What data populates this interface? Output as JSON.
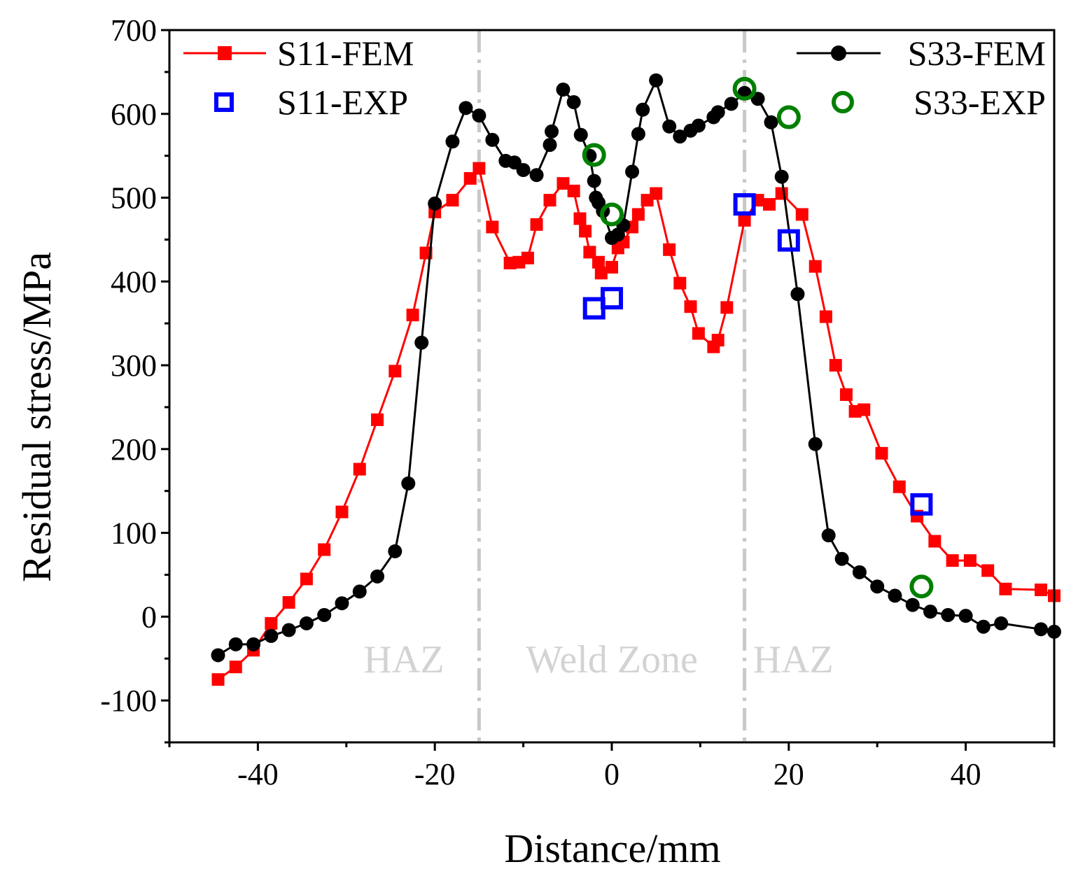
{
  "chart_data": {
    "type": "line",
    "title": "",
    "xlabel": "Distance/mm",
    "ylabel": "Residual stress/MPa",
    "xlim": [
      -50,
      50
    ],
    "ylim": [
      -150,
      700
    ],
    "xticks": [
      -40,
      -20,
      0,
      20,
      40
    ],
    "xtick_labels": [
      "-40",
      "-20",
      "0",
      "20",
      "40"
    ],
    "yticks": [
      -100,
      0,
      100,
      200,
      300,
      400,
      500,
      600,
      700
    ],
    "ytick_labels": [
      "-100",
      "0",
      "100",
      "200",
      "300",
      "400",
      "500",
      "600",
      "700"
    ],
    "zone_boundaries": [
      -15,
      15
    ],
    "zone_labels": [
      {
        "text": "HAZ",
        "x": -23.5,
        "y": -50
      },
      {
        "text": "Weld Zone",
        "x": 0,
        "y": -50
      },
      {
        "text": "HAZ",
        "x": 20.5,
        "y": -50
      }
    ],
    "series": [
      {
        "name": "S11-FEM",
        "color": "#ff0000",
        "marker": "square",
        "style": "line",
        "x": [
          -44.5,
          -42.5,
          -40.5,
          -38.5,
          -36.5,
          -34.5,
          -32.5,
          -30.5,
          -28.5,
          -26.5,
          -24.5,
          -22.5,
          -21,
          -20,
          -18,
          -16,
          -15,
          -13.5,
          -11.5,
          -10.5,
          -9.5,
          -8.5,
          -7,
          -5.5,
          -4.3,
          -3.6,
          -3,
          -2.5,
          -1.5,
          -1.2,
          0,
          0.7,
          1.3,
          2.3,
          3,
          4,
          5,
          6.5,
          7.7,
          8.9,
          9.8,
          11.5,
          12,
          13,
          15,
          16.5,
          17.8,
          19.2,
          21.5,
          23,
          24.2,
          25.3,
          26.5,
          27.5,
          28.5,
          30.5,
          32.5,
          34.5,
          36.5,
          38.5,
          40.5,
          42.5,
          44.5,
          48.5,
          50
        ],
        "y": [
          -75,
          -60,
          -40,
          -8,
          17,
          45,
          80,
          125,
          176,
          235,
          293,
          360,
          434,
          483,
          497,
          523,
          535,
          465,
          422,
          423,
          428,
          468,
          497,
          517,
          508,
          475,
          460,
          435,
          423,
          410,
          417,
          440,
          447,
          465,
          480,
          497,
          505,
          438,
          398,
          370,
          338,
          322,
          330,
          369,
          473,
          497,
          492,
          505,
          480,
          418,
          358,
          300,
          265,
          245,
          247,
          195,
          155,
          120,
          90,
          67,
          67,
          55,
          33,
          32,
          25
        ]
      },
      {
        "name": "S33-FEM",
        "color": "#000000",
        "marker": "circle",
        "style": "line",
        "x": [
          -44.5,
          -42.5,
          -40.5,
          -38.5,
          -36.5,
          -34.5,
          -32.5,
          -30.5,
          -28.5,
          -26.5,
          -24.5,
          -23,
          -21.5,
          -20,
          -18,
          -16.5,
          -15,
          -13.5,
          -12,
          -11,
          -10,
          -8.5,
          -7,
          -6.8,
          -5.5,
          -4.3,
          -3.5,
          -2.5,
          -2,
          -1.8,
          -1.5,
          -1,
          0,
          0.7,
          1.3,
          2.3,
          3,
          3.5,
          5,
          6.5,
          7.7,
          8.9,
          9.8,
          11.5,
          12,
          13.5,
          15,
          16.5,
          18,
          19.2,
          21,
          23,
          24.5,
          26,
          28,
          30,
          32,
          34,
          36,
          38,
          40,
          42,
          44,
          48.5,
          50
        ],
        "y": [
          -46,
          -33,
          -33,
          -23,
          -16,
          -8,
          2,
          16,
          30,
          48,
          78,
          159,
          327,
          493,
          567,
          607,
          598,
          569,
          544,
          542,
          533,
          527,
          563,
          579,
          629,
          614,
          575,
          550,
          520,
          500,
          494,
          484,
          452,
          456,
          467,
          531,
          576,
          605,
          640,
          585,
          573,
          580,
          586,
          596,
          602,
          612,
          625,
          618,
          590,
          525,
          385,
          206,
          97,
          69,
          53,
          36,
          25,
          14,
          6,
          2,
          1,
          -12,
          -8,
          -15,
          -18
        ]
      },
      {
        "name": "S11-EXP",
        "color": "#0000ff",
        "marker": "open-square",
        "style": "scatter",
        "x": [
          -2,
          0,
          15,
          20,
          35
        ],
        "y": [
          368,
          380,
          492,
          449,
          134
        ]
      },
      {
        "name": "S33-EXP",
        "color": "#008000",
        "marker": "open-circle",
        "style": "scatter",
        "x": [
          -2,
          0,
          15,
          20,
          35
        ],
        "y": [
          551,
          480,
          630,
          596,
          36
        ]
      }
    ]
  }
}
